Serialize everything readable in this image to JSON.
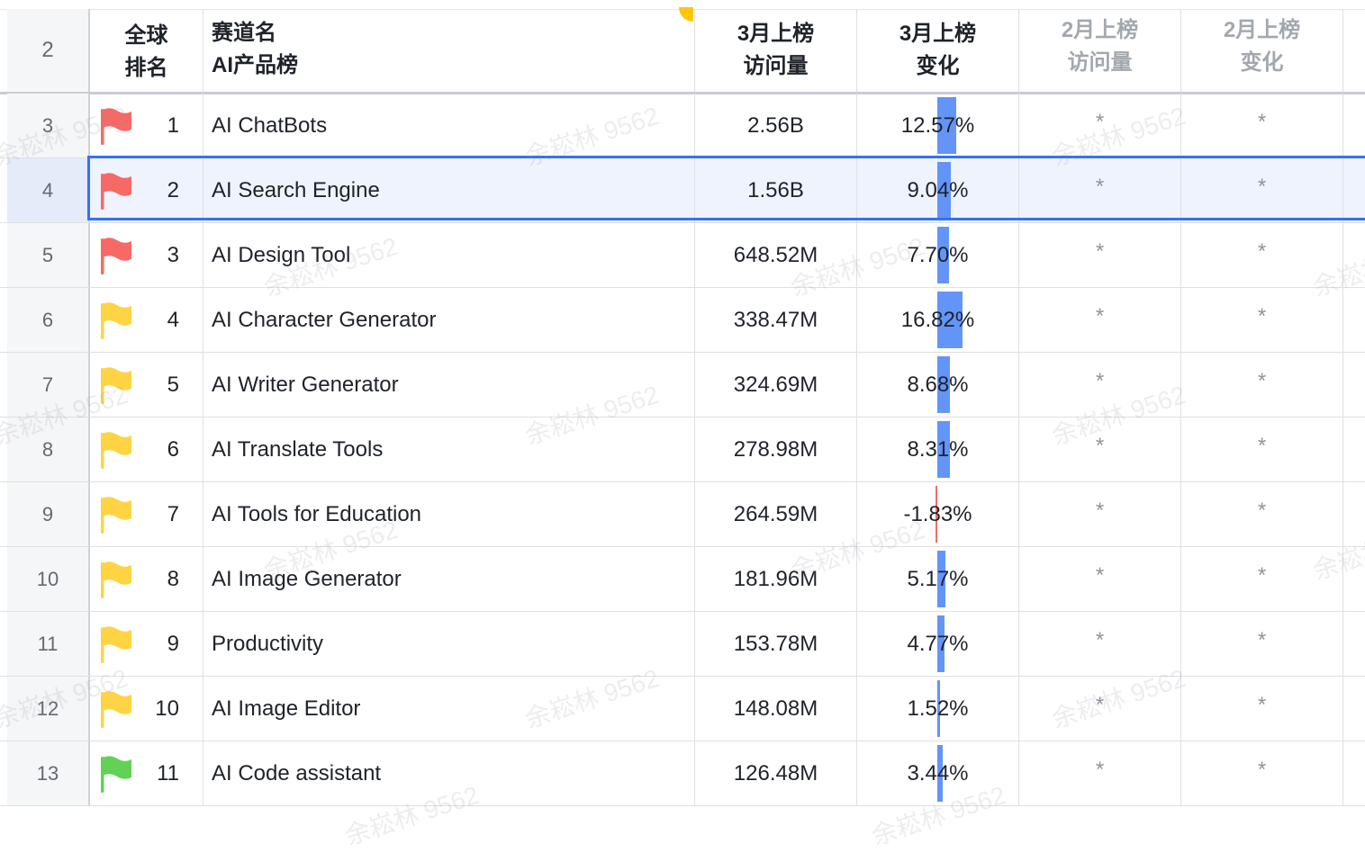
{
  "headers": {
    "row_num": "2",
    "rank": "全球\n排名",
    "track": "赛道名\nAI产品榜",
    "mar_visits": "3月上榜\n访问量",
    "mar_change": "3月上榜\n变化",
    "feb_visits": "2月上榜\n访问量",
    "feb_change": "2月上榜\n变化"
  },
  "watermark": "余崧林 9562",
  "colors": {
    "flag_red": "#f76964",
    "flag_yellow": "#ffd444",
    "flag_green": "#62d256",
    "bar_positive": "#5b8ff9",
    "bar_negative": "#f26b6b",
    "selection": "#3370ff"
  },
  "rows": [
    {
      "row_num": "3",
      "flag": "red",
      "rank": "1",
      "name": "AI ChatBots",
      "mar_visits": "2.56B",
      "mar_change": "12.57%",
      "change_value": 12.57,
      "feb_visits": "*",
      "feb_change": "*"
    },
    {
      "row_num": "4",
      "flag": "red",
      "rank": "2",
      "name": "AI Search Engine",
      "mar_visits": "1.56B",
      "mar_change": "9.04%",
      "change_value": 9.04,
      "feb_visits": "*",
      "feb_change": "*",
      "selected": true
    },
    {
      "row_num": "5",
      "flag": "red",
      "rank": "3",
      "name": "AI Design Tool",
      "mar_visits": "648.52M",
      "mar_change": "7.70%",
      "change_value": 7.7,
      "feb_visits": "*",
      "feb_change": "*"
    },
    {
      "row_num": "6",
      "flag": "yellow",
      "rank": "4",
      "name": "AI Character Generator",
      "mar_visits": "338.47M",
      "mar_change": "16.82%",
      "change_value": 16.82,
      "feb_visits": "*",
      "feb_change": "*"
    },
    {
      "row_num": "7",
      "flag": "yellow",
      "rank": "5",
      "name": "AI Writer Generator",
      "mar_visits": "324.69M",
      "mar_change": "8.68%",
      "change_value": 8.68,
      "feb_visits": "*",
      "feb_change": "*"
    },
    {
      "row_num": "8",
      "flag": "yellow",
      "rank": "6",
      "name": "AI Translate Tools",
      "mar_visits": "278.98M",
      "mar_change": "8.31%",
      "change_value": 8.31,
      "feb_visits": "*",
      "feb_change": "*"
    },
    {
      "row_num": "9",
      "flag": "yellow",
      "rank": "7",
      "name": "AI Tools for Education",
      "mar_visits": "264.59M",
      "mar_change": "-1.83%",
      "change_value": -1.83,
      "feb_visits": "*",
      "feb_change": "*"
    },
    {
      "row_num": "10",
      "flag": "yellow",
      "rank": "8",
      "name": "AI Image Generator",
      "mar_visits": "181.96M",
      "mar_change": "5.17%",
      "change_value": 5.17,
      "feb_visits": "*",
      "feb_change": "*"
    },
    {
      "row_num": "11",
      "flag": "yellow",
      "rank": "9",
      "name": "Productivity",
      "mar_visits": "153.78M",
      "mar_change": "4.77%",
      "change_value": 4.77,
      "feb_visits": "*",
      "feb_change": "*"
    },
    {
      "row_num": "12",
      "flag": "yellow",
      "rank": "10",
      "name": "AI Image Editor",
      "mar_visits": "148.08M",
      "mar_change": "1.52%",
      "change_value": 1.52,
      "feb_visits": "*",
      "feb_change": "*"
    },
    {
      "row_num": "13",
      "flag": "green",
      "rank": "11",
      "name": "AI Code assistant",
      "mar_visits": "126.48M",
      "mar_change": "3.44%",
      "change_value": 3.44,
      "feb_visits": "*",
      "feb_change": "*"
    }
  ]
}
